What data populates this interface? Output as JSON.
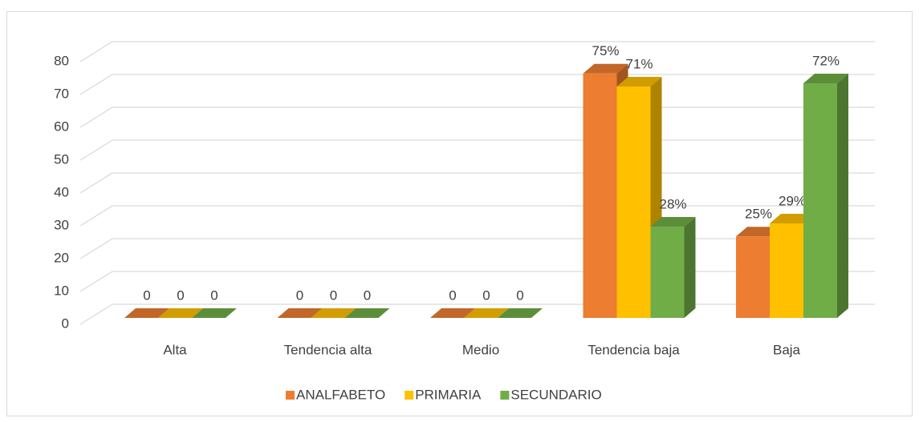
{
  "chart_data": {
    "type": "bar3d",
    "categories": [
      "Alta",
      "Tendencia alta",
      "Medio",
      "Tendencia baja",
      "Baja"
    ],
    "series": [
      {
        "name": "ANALFABETO",
        "color": "#ed7d31",
        "values": [
          0,
          0,
          0,
          75,
          25
        ],
        "value_labels": [
          "0",
          "0",
          "0",
          "75%",
          "25%"
        ]
      },
      {
        "name": "PRIMARIA",
        "color": "#ffc000",
        "values": [
          0,
          0,
          0,
          71,
          29
        ],
        "value_labels": [
          "0",
          "0",
          "0",
          "71%",
          "29%"
        ]
      },
      {
        "name": "SECUNDARIO",
        "color": "#70ad47",
        "values": [
          0,
          0,
          0,
          28,
          72
        ],
        "value_labels": [
          "0",
          "0",
          "0",
          "28%",
          "72%"
        ]
      }
    ],
    "ylim": [
      0,
      80
    ],
    "yticks": [
      0,
      10,
      20,
      30,
      40,
      50,
      60,
      70,
      80
    ],
    "grid": true
  }
}
